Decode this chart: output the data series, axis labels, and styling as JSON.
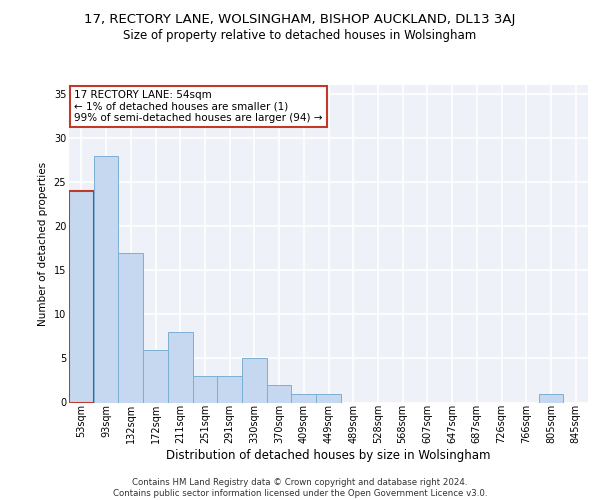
{
  "title_line1": "17, RECTORY LANE, WOLSINGHAM, BISHOP AUCKLAND, DL13 3AJ",
  "title_line2": "Size of property relative to detached houses in Wolsingham",
  "xlabel": "Distribution of detached houses by size in Wolsingham",
  "ylabel": "Number of detached properties",
  "categories": [
    "53sqm",
    "93sqm",
    "132sqm",
    "172sqm",
    "211sqm",
    "251sqm",
    "291sqm",
    "330sqm",
    "370sqm",
    "409sqm",
    "449sqm",
    "489sqm",
    "528sqm",
    "568sqm",
    "607sqm",
    "647sqm",
    "687sqm",
    "726sqm",
    "766sqm",
    "805sqm",
    "845sqm"
  ],
  "values": [
    24,
    28,
    17,
    6,
    8,
    3,
    3,
    5,
    2,
    1,
    1,
    0,
    0,
    0,
    0,
    0,
    0,
    0,
    0,
    1,
    0
  ],
  "bar_color": "#c5d8f0",
  "bar_edge_color": "#7bafd4",
  "highlight_bar_index": 0,
  "highlight_bar_edge_color": "#c0392b",
  "annotation_text": "17 RECTORY LANE: 54sqm\n← 1% of detached houses are smaller (1)\n99% of semi-detached houses are larger (94) →",
  "annotation_box_color": "#ffffff",
  "annotation_box_edge_color": "#c0392b",
  "footer_line1": "Contains HM Land Registry data © Crown copyright and database right 2024.",
  "footer_line2": "Contains public sector information licensed under the Open Government Licence v3.0.",
  "ylim": [
    0,
    36
  ],
  "yticks": [
    0,
    5,
    10,
    15,
    20,
    25,
    30,
    35
  ],
  "bg_color": "#eef2f8",
  "grid_color": "#ffffff",
  "title_fontsize": 9.5,
  "subtitle_fontsize": 8.5,
  "tick_fontsize": 7,
  "ylabel_fontsize": 7.5,
  "xlabel_fontsize": 8.5,
  "footer_fontsize": 6.2,
  "annotation_fontsize": 7.5
}
